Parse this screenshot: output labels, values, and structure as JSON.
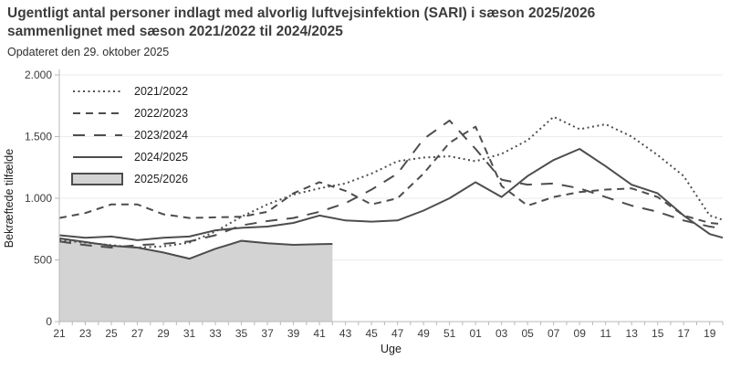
{
  "header": {
    "title": "Ugentligt antal personer indlagt med alvorlig luftvejsinfektion (SARI) i sæson 2025/2026 sammenlignet med sæson 2021/2022 til 2024/2025",
    "updated": "Opdateret den 29. oktober 2025"
  },
  "chart_data": {
    "type": "line",
    "title": "Ugentligt antal personer indlagt med alvorlig luftvejsinfektion (SARI) i sæson 2025/2026 sammenlignet med sæson 2021/2022 til 2024/2025",
    "subtitle": "Opdateret den 29. oktober 2025",
    "xlabel": "Uge",
    "ylabel": "Bekræftede tilfælde",
    "ylim": [
      0,
      2000
    ],
    "grid": "horizontal",
    "legend_position": "top-left-inside",
    "y_ticks": {
      "values": [
        0,
        500,
        1000,
        1500,
        2000
      ],
      "labels": [
        "0",
        "500",
        "1.000",
        "1.500",
        "2.000"
      ]
    },
    "x_tick_labels": [
      "21",
      "23",
      "25",
      "27",
      "29",
      "31",
      "33",
      "35",
      "37",
      "39",
      "41",
      "43",
      "45",
      "47",
      "49",
      "51",
      "01",
      "03",
      "05",
      "07",
      "09",
      "11",
      "13",
      "15",
      "17",
      "19"
    ],
    "x_tick_idx": [
      0,
      2,
      4,
      6,
      8,
      10,
      12,
      14,
      16,
      18,
      20,
      22,
      24,
      26,
      28,
      30,
      32,
      34,
      36,
      38,
      40,
      42,
      44,
      46,
      48,
      50
    ],
    "weeks_span": 51,
    "colors": {
      "line": "#4d4d4d",
      "area_fill": "#d3d3d3",
      "grid": "#ebebeb",
      "axis": "#b8b8b8",
      "text": "#3c3c3c"
    },
    "series": [
      {
        "name": "2021/2022",
        "style": "dotted",
        "x": [
          0,
          2,
          4,
          6,
          8,
          10,
          12,
          14,
          16,
          18,
          20,
          22,
          24,
          26,
          28,
          30,
          32,
          34,
          36,
          38,
          40,
          42,
          44,
          46,
          48,
          50,
          51
        ],
        "values": [
          660,
          640,
          620,
          600,
          610,
          640,
          730,
          850,
          950,
          1030,
          1080,
          1120,
          1200,
          1300,
          1330,
          1340,
          1300,
          1360,
          1470,
          1660,
          1560,
          1600,
          1500,
          1350,
          1180,
          860,
          825
        ]
      },
      {
        "name": "2022/2023",
        "style": "dash",
        "x": [
          0,
          2,
          4,
          6,
          8,
          10,
          12,
          14,
          16,
          18,
          20,
          22,
          24,
          26,
          28,
          30,
          32,
          34,
          36,
          38,
          40,
          42,
          44,
          46,
          48,
          50,
          51
        ],
        "values": [
          840,
          880,
          950,
          950,
          870,
          840,
          845,
          850,
          890,
          1040,
          1130,
          1060,
          950,
          1000,
          1200,
          1450,
          1580,
          1100,
          940,
          1010,
          1050,
          1070,
          1080,
          1010,
          860,
          800,
          790
        ]
      },
      {
        "name": "2023/2024",
        "style": "longdash",
        "x": [
          0,
          2,
          4,
          6,
          8,
          10,
          12,
          14,
          16,
          18,
          20,
          22,
          24,
          26,
          28,
          30,
          32,
          34,
          36,
          38,
          40,
          42,
          44,
          46,
          48,
          50,
          51
        ],
        "values": [
          650,
          620,
          600,
          620,
          630,
          650,
          700,
          780,
          815,
          840,
          890,
          960,
          1070,
          1200,
          1480,
          1630,
          1400,
          1150,
          1110,
          1120,
          1080,
          1010,
          940,
          890,
          820,
          770,
          755
        ]
      },
      {
        "name": "2024/2025",
        "style": "solid",
        "x": [
          0,
          2,
          4,
          6,
          8,
          10,
          12,
          14,
          16,
          18,
          20,
          22,
          24,
          26,
          28,
          30,
          32,
          34,
          36,
          38,
          40,
          42,
          44,
          46,
          48,
          50,
          51
        ],
        "values": [
          700,
          680,
          690,
          660,
          680,
          690,
          740,
          760,
          770,
          800,
          860,
          820,
          810,
          820,
          900,
          1000,
          1130,
          1010,
          1180,
          1310,
          1400,
          1260,
          1110,
          1040,
          860,
          710,
          680
        ]
      },
      {
        "name": "2025/2026",
        "style": "area",
        "x": [
          0,
          2,
          4,
          6,
          8,
          10,
          12,
          14,
          16,
          18,
          20,
          21
        ],
        "values": [
          675,
          645,
          615,
          600,
          560,
          510,
          590,
          655,
          635,
          622,
          628,
          630
        ]
      }
    ]
  }
}
